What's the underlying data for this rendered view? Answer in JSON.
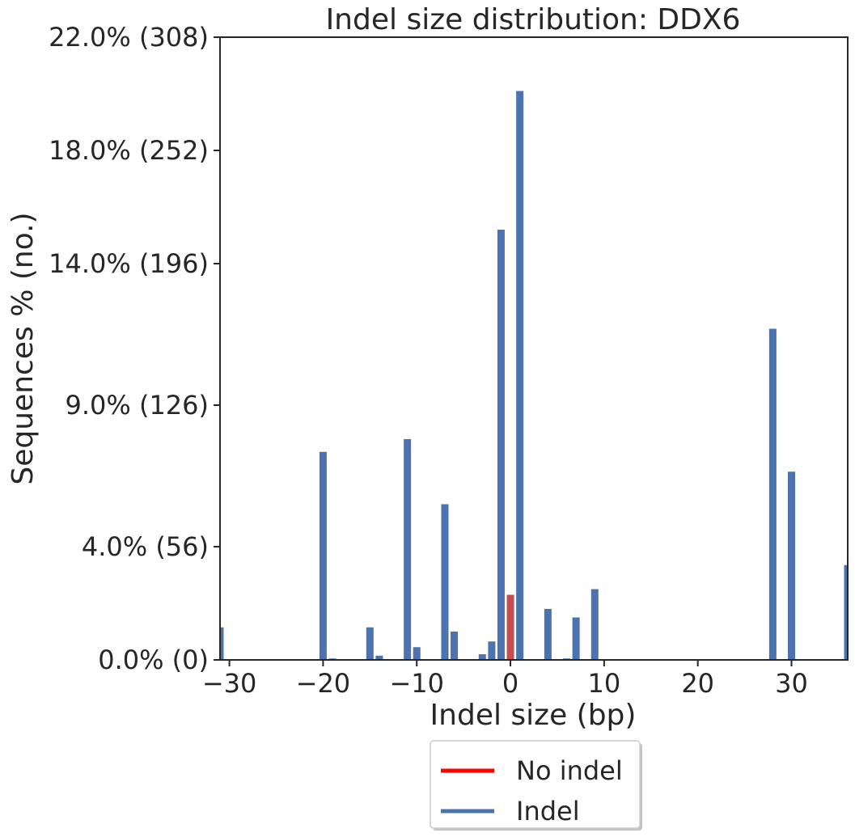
{
  "chart_data": {
    "type": "bar",
    "title": "Indel size distribution: DDX6",
    "xlabel": "Indel size (bp)",
    "ylabel": "Sequences % (no.)",
    "xlim": [
      -31,
      36
    ],
    "ylim": [
      0,
      22
    ],
    "xticks": [
      {
        "value": -30,
        "label": "−30"
      },
      {
        "value": -20,
        "label": "−20"
      },
      {
        "value": -10,
        "label": "−10"
      },
      {
        "value": 0,
        "label": "0"
      },
      {
        "value": 10,
        "label": "10"
      },
      {
        "value": 20,
        "label": "20"
      },
      {
        "value": 30,
        "label": "30"
      }
    ],
    "yticks": [
      {
        "value": 0,
        "label": "0.0% (0)"
      },
      {
        "value": 4,
        "label": "4.0% (56)"
      },
      {
        "value": 9,
        "label": "9.0% (126)"
      },
      {
        "value": 14,
        "label": "14.0% (196)"
      },
      {
        "value": 18,
        "label": "18.0% (252)"
      },
      {
        "value": 22,
        "label": "22.0% (308)"
      }
    ],
    "series": [
      {
        "name": "No indel",
        "color": "#c44e52",
        "legend_color": "#ff0000",
        "x": [
          0
        ],
        "values": [
          2.3
        ]
      },
      {
        "name": "Indel",
        "color": "#4c72b0",
        "legend_color": "#4c72b0",
        "x": [
          -31,
          -20,
          -19,
          -15,
          -14,
          -11,
          -10,
          -7,
          -6,
          -3,
          -2,
          -1,
          1,
          4,
          6,
          7,
          9,
          28,
          30,
          36
        ],
        "values": [
          1.15,
          7.35,
          0.05,
          1.15,
          0.15,
          7.8,
          0.45,
          5.5,
          1.0,
          0.2,
          0.65,
          15.2,
          20.1,
          1.8,
          0.05,
          1.5,
          2.5,
          11.7,
          6.65,
          3.35
        ]
      }
    ],
    "legend": {
      "location": "bottom-center",
      "entries": [
        "No indel",
        "Indel"
      ]
    },
    "grid": false
  }
}
